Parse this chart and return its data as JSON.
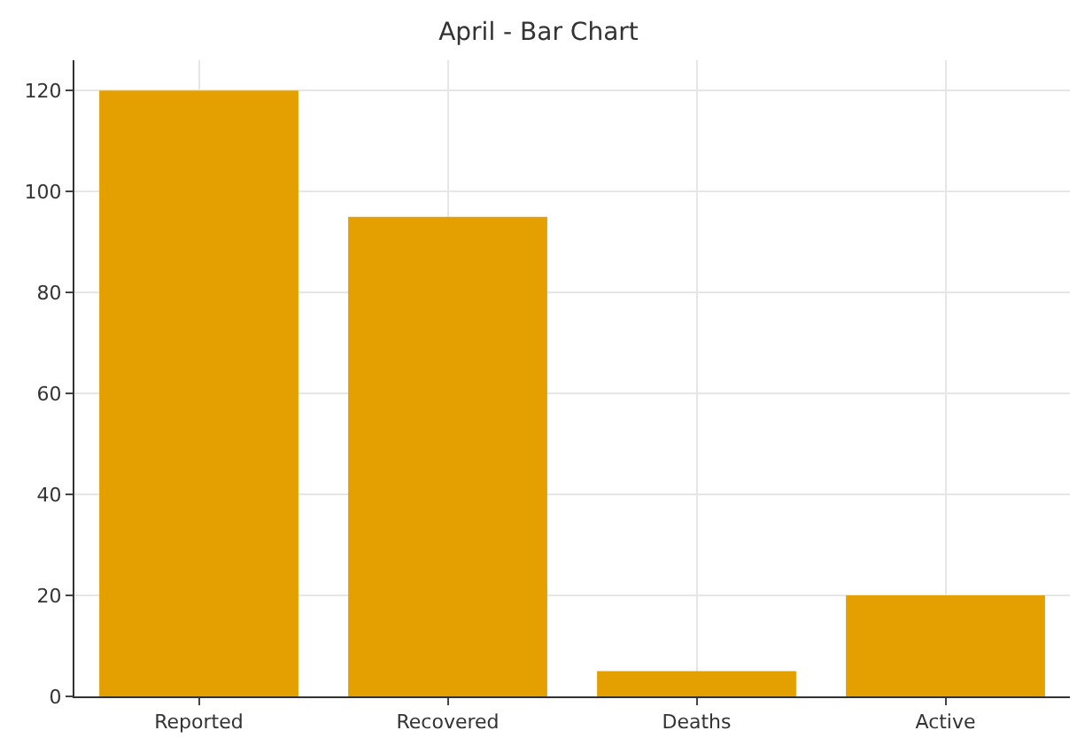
{
  "chart_data": {
    "type": "bar",
    "title": "April - Bar Chart",
    "categories": [
      "Reported",
      "Recovered",
      "Deaths",
      "Active"
    ],
    "values": [
      120,
      95,
      5,
      20
    ],
    "color": "#e3a000",
    "ylim": [
      0,
      126
    ],
    "yticks": [
      0,
      20,
      40,
      60,
      80,
      100,
      120
    ],
    "grid": true
  }
}
